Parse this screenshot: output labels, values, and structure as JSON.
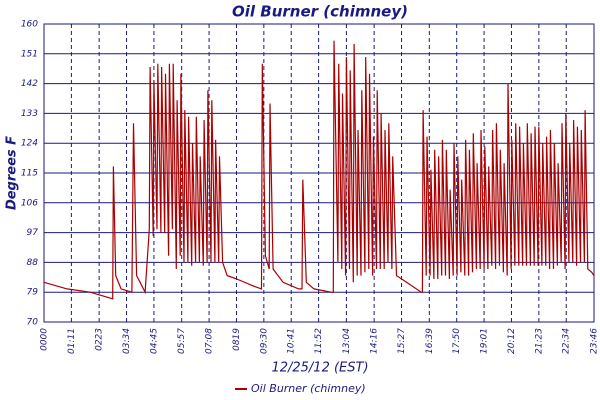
{
  "chart_data": {
    "type": "line",
    "title": "Oil Burner (chimney)",
    "xlabel": "12/25/12 (EST)",
    "ylabel": "Degrees F",
    "grid": true,
    "xlim": [
      0,
      1426
    ],
    "ylim": [
      70,
      160
    ],
    "yticks": [
      70,
      79,
      88,
      97,
      106,
      115,
      124,
      133,
      142,
      151,
      160
    ],
    "xticks": [
      {
        "value": 0,
        "label": "0000"
      },
      {
        "value": 71,
        "label": "01:11"
      },
      {
        "value": 143,
        "label": "0223"
      },
      {
        "value": 214,
        "label": "03:34"
      },
      {
        "value": 285,
        "label": "04:45"
      },
      {
        "value": 357,
        "label": "05:57"
      },
      {
        "value": 428,
        "label": "07:08"
      },
      {
        "value": 499,
        "label": "0819"
      },
      {
        "value": 570,
        "label": "09:30"
      },
      {
        "value": 641,
        "label": "10:41"
      },
      {
        "value": 712,
        "label": "11:52"
      },
      {
        "value": 784,
        "label": "13:04"
      },
      {
        "value": 856,
        "label": "14:16"
      },
      {
        "value": 927,
        "label": "15:27"
      },
      {
        "value": 999,
        "label": "16:39"
      },
      {
        "value": 1070,
        "label": "17:50"
      },
      {
        "value": 1141,
        "label": "19:01"
      },
      {
        "value": 1212,
        "label": "20:12"
      },
      {
        "value": 1283,
        "label": "21:23"
      },
      {
        "value": 1354,
        "label": "22:34"
      },
      {
        "value": 1426,
        "label": "23:46"
      }
    ],
    "x": [
      0,
      60,
      120,
      178,
      180,
      186,
      200,
      228,
      232,
      240,
      262,
      273,
      275,
      283,
      285,
      293,
      295,
      303,
      305,
      313,
      315,
      323,
      325,
      333,
      335,
      343,
      345,
      353,
      355,
      363,
      365,
      373,
      375,
      383,
      385,
      393,
      395,
      403,
      405,
      413,
      415,
      423,
      425,
      433,
      435,
      443,
      445,
      453,
      455,
      463,
      475,
      500,
      540,
      564,
      566,
      574,
      584,
      586,
      594,
      620,
      660,
      669,
      671,
      680,
      700,
      745,
      750,
      752,
      762,
      764,
      772,
      774,
      782,
      784,
      792,
      794,
      802,
      804,
      812,
      814,
      822,
      824,
      832,
      834,
      842,
      844,
      852,
      854,
      862,
      864,
      872,
      874,
      882,
      884,
      892,
      894,
      902,
      904,
      914,
      940,
      978,
      981,
      983,
      991,
      993,
      1001,
      1003,
      1011,
      1013,
      1021,
      1023,
      1031,
      1033,
      1041,
      1043,
      1051,
      1053,
      1061,
      1063,
      1071,
      1073,
      1081,
      1083,
      1091,
      1093,
      1101,
      1103,
      1111,
      1113,
      1121,
      1123,
      1131,
      1133,
      1141,
      1143,
      1151,
      1153,
      1161,
      1163,
      1171,
      1173,
      1181,
      1183,
      1191,
      1193,
      1201,
      1203,
      1211,
      1213,
      1221,
      1223,
      1231,
      1233,
      1241,
      1243,
      1251,
      1253,
      1261,
      1263,
      1271,
      1273,
      1281,
      1283,
      1291,
      1293,
      1301,
      1303,
      1311,
      1313,
      1321,
      1323,
      1331,
      1333,
      1341,
      1343,
      1351,
      1353,
      1361,
      1363,
      1371,
      1373,
      1381,
      1383,
      1391,
      1393,
      1401,
      1403,
      1410,
      1420,
      1426
    ],
    "series": [
      {
        "name": "Oil Burner (chimney)",
        "color": "#aa0000",
        "values": [
          82,
          80,
          79,
          77,
          117,
          84,
          80,
          79,
          130,
          84,
          79,
          98,
          147,
          96,
          143,
          98,
          148,
          97,
          147,
          97,
          145,
          90,
          148,
          98,
          148,
          86,
          137,
          90,
          145,
          88,
          134,
          88,
          132,
          87,
          124,
          88,
          132,
          88,
          120,
          87,
          131,
          88,
          140,
          88,
          137,
          88,
          125,
          88,
          120,
          88,
          84,
          83,
          81,
          80,
          148,
          90,
          86,
          136,
          86,
          82,
          80,
          80,
          113,
          82,
          80,
          79,
          79,
          155,
          88,
          148,
          86,
          139,
          84,
          150,
          86,
          146,
          82,
          154,
          84,
          128,
          84,
          140,
          85,
          150,
          86,
          145,
          84,
          126,
          86,
          140,
          86,
          133,
          86,
          128,
          88,
          130,
          86,
          120,
          84,
          82,
          79,
          79,
          134,
          84,
          126,
          84,
          116,
          83,
          122,
          83,
          120,
          84,
          125,
          84,
          122,
          83,
          110,
          84,
          124,
          84,
          120,
          85,
          113,
          84,
          125,
          84,
          122,
          85,
          127,
          86,
          118,
          86,
          128,
          86,
          123,
          86,
          117,
          87,
          128,
          86,
          130,
          87,
          122,
          85,
          118,
          84,
          142,
          86,
          125,
          87,
          130,
          87,
          129,
          87,
          124,
          87,
          130,
          87,
          127,
          87,
          129,
          87,
          129,
          87,
          124,
          87,
          126,
          86,
          128,
          86,
          124,
          87,
          118,
          88,
          130,
          86,
          133,
          88,
          124,
          88,
          131,
          87,
          129,
          88,
          128,
          88,
          134,
          86,
          85,
          84
        ]
      }
    ]
  }
}
